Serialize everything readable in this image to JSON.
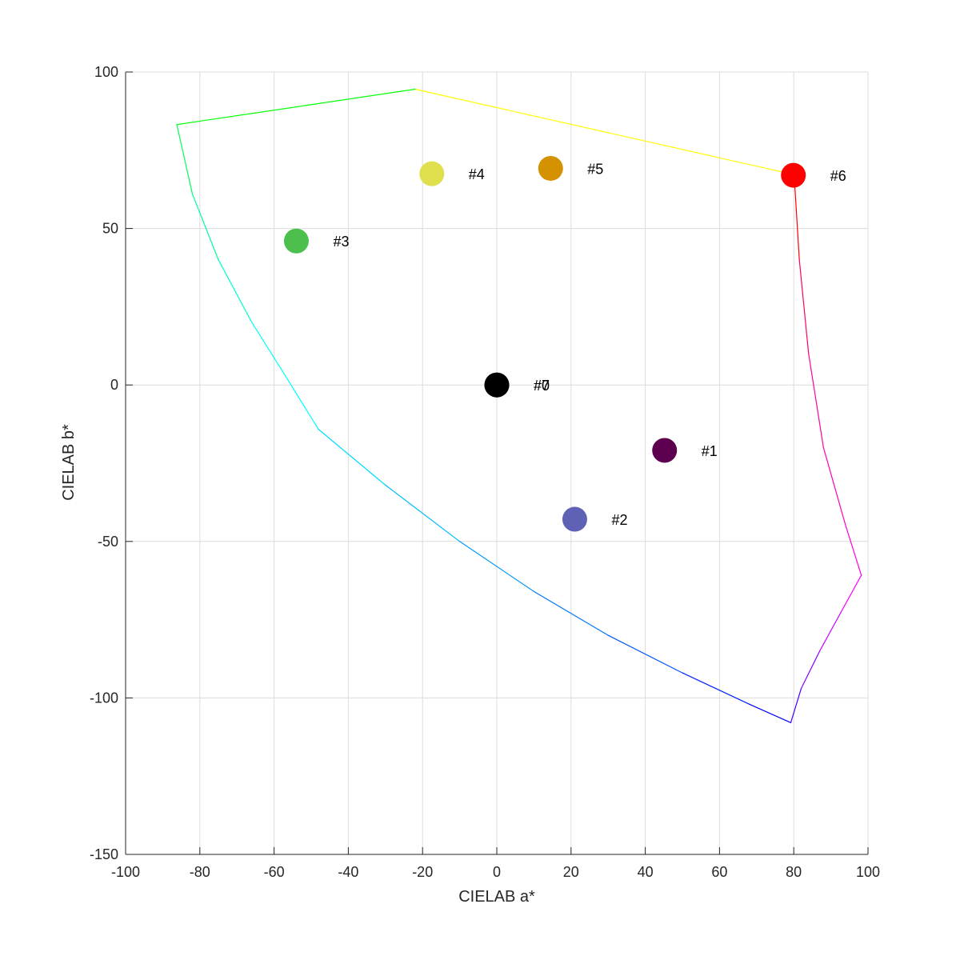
{
  "chart_data": {
    "type": "scatter",
    "title": "",
    "xlabel": "CIELAB a*",
    "ylabel": "CIELAB b*",
    "xlim": [
      -100,
      100
    ],
    "ylim": [
      -150,
      100
    ],
    "xticks": [
      "-100",
      "-80",
      "-60",
      "-40",
      "-20",
      "0",
      "20",
      "40",
      "60",
      "80",
      "100"
    ],
    "yticks": [
      "-150",
      "-100",
      "-50",
      "0",
      "50",
      "100"
    ],
    "grid": true,
    "points": [
      {
        "label": "#1",
        "a": 45.2,
        "b": -20.9,
        "color": "#5e0050"
      },
      {
        "label": "#2",
        "a": 21.0,
        "b": -42.9,
        "color": "#5f61b5"
      },
      {
        "label": "#3",
        "a": -54.0,
        "b": 46.0,
        "color": "#4cbf4c"
      },
      {
        "label": "#4",
        "a": -17.5,
        "b": 67.5,
        "color": "#e0e04f"
      },
      {
        "label": "#5",
        "a": 14.5,
        "b": 69.2,
        "color": "#d49100"
      },
      {
        "label": "#6",
        "a": 79.9,
        "b": 67.0,
        "color": "#ff0000"
      },
      {
        "label": "#7",
        "a": 0,
        "b": 0,
        "color": "#000000"
      },
      {
        "label": "#0",
        "a": 0,
        "b": 0,
        "color": "#000000"
      }
    ],
    "gamut_boundary": [
      {
        "a": 80.1,
        "b": 67.2,
        "color": "#ff0000"
      },
      {
        "a": -22.0,
        "b": 94.5,
        "color": "#ffff00"
      },
      {
        "a": -86.2,
        "b": 83.2,
        "color": "#00ff00"
      },
      {
        "a": -82.0,
        "b": 61.0,
        "color": "#00ff55"
      },
      {
        "a": -75.0,
        "b": 40.0,
        "color": "#00ff99"
      },
      {
        "a": -66.0,
        "b": 20.0,
        "color": "#00ffcc"
      },
      {
        "a": -57.0,
        "b": 3.0,
        "color": "#00ffee"
      },
      {
        "a": -48.1,
        "b": -14.1,
        "color": "#00ffff"
      },
      {
        "a": -30.0,
        "b": -32.0,
        "color": "#00ddff"
      },
      {
        "a": -10.0,
        "b": -50.0,
        "color": "#00bbff"
      },
      {
        "a": 10.0,
        "b": -66.0,
        "color": "#0099ff"
      },
      {
        "a": 30.0,
        "b": -80.0,
        "color": "#0077ff"
      },
      {
        "a": 50.0,
        "b": -92.0,
        "color": "#0055ff"
      },
      {
        "a": 68.0,
        "b": -102.0,
        "color": "#0022ff"
      },
      {
        "a": 79.2,
        "b": -107.9,
        "color": "#0000ff"
      },
      {
        "a": 82.0,
        "b": -97.0,
        "color": "#4400ff"
      },
      {
        "a": 87.0,
        "b": -85.0,
        "color": "#8800ff"
      },
      {
        "a": 93.0,
        "b": -72.0,
        "color": "#cc00ff"
      },
      {
        "a": 98.2,
        "b": -60.8,
        "color": "#ff00ff"
      },
      {
        "a": 94.0,
        "b": -45.0,
        "color": "#ff00dd"
      },
      {
        "a": 88.0,
        "b": -20.0,
        "color": "#ff00bb"
      },
      {
        "a": 84.0,
        "b": 10.0,
        "color": "#ff0099"
      },
      {
        "a": 81.5,
        "b": 40.0,
        "color": "#ff0066"
      },
      {
        "a": 80.1,
        "b": 67.2,
        "color": "#ff0000"
      }
    ]
  }
}
